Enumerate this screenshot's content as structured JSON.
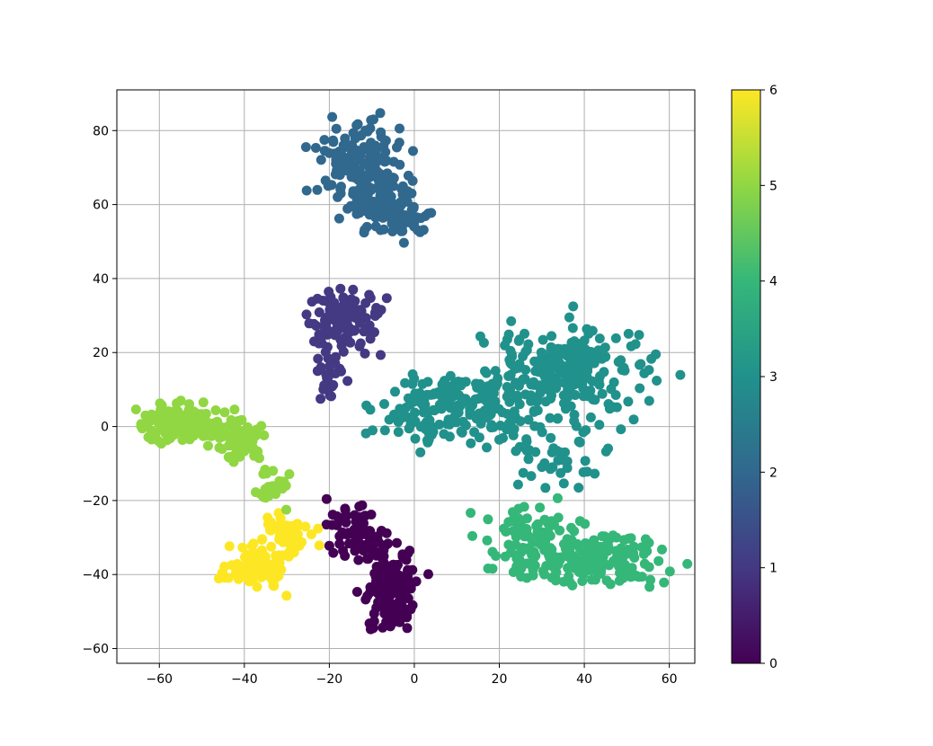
{
  "chart_data": {
    "type": "scatter",
    "title": "",
    "xlabel": "",
    "ylabel": "",
    "xlim": [
      -70,
      66
    ],
    "ylim": [
      -64,
      91
    ],
    "grid": true,
    "x_ticks": [
      -60,
      -40,
      -20,
      0,
      20,
      40,
      60
    ],
    "y_ticks": [
      -60,
      -40,
      -20,
      0,
      20,
      40,
      60,
      80
    ],
    "x_tick_labels": [
      "−60",
      "−40",
      "−20",
      "0",
      "20",
      "40",
      "60"
    ],
    "y_tick_labels": [
      "−60",
      "−40",
      "−20",
      "0",
      "20",
      "40",
      "60",
      "80"
    ],
    "colorbar": {
      "colormap": "viridis",
      "range": [
        0,
        6
      ],
      "ticks": [
        0,
        1,
        2,
        3,
        4,
        5,
        6
      ],
      "tick_labels": [
        "0",
        "1",
        "2",
        "3",
        "4",
        "5",
        "6"
      ],
      "colors": [
        "#440154",
        "#443983",
        "#31688e",
        "#21918c",
        "#35b779",
        "#90d743",
        "#fde725"
      ]
    },
    "clusters": [
      {
        "label": 2,
        "center": [
          -12,
          70
        ],
        "spread": [
          6,
          7
        ],
        "count": 160
      },
      {
        "label": 2,
        "center": [
          -5,
          58
        ],
        "spread": [
          5,
          4
        ],
        "count": 90
      },
      {
        "label": 1,
        "center": [
          -17,
          28
        ],
        "spread": [
          5,
          5
        ],
        "count": 110
      },
      {
        "label": 1,
        "center": [
          -20,
          14
        ],
        "spread": [
          2,
          4
        ],
        "count": 25
      },
      {
        "label": 3,
        "center": [
          10,
          5
        ],
        "spread": [
          10,
          6
        ],
        "count": 180
      },
      {
        "label": 3,
        "center": [
          36,
          15
        ],
        "spread": [
          12,
          7
        ],
        "count": 230
      },
      {
        "label": 3,
        "center": [
          35,
          -6
        ],
        "spread": [
          6,
          6
        ],
        "count": 50
      },
      {
        "label": 4,
        "center": [
          28,
          -32
        ],
        "spread": [
          7,
          6
        ],
        "count": 120
      },
      {
        "label": 4,
        "center": [
          45,
          -36
        ],
        "spread": [
          8,
          4
        ],
        "count": 130
      },
      {
        "label": 0,
        "center": [
          -14,
          -28
        ],
        "spread": [
          4,
          5
        ],
        "count": 60
      },
      {
        "label": 0,
        "center": [
          -6,
          -40
        ],
        "spread": [
          4,
          6
        ],
        "count": 110
      },
      {
        "label": 0,
        "center": [
          -6,
          -50
        ],
        "spread": [
          3,
          3
        ],
        "count": 40
      },
      {
        "label": 5,
        "center": [
          -55,
          1
        ],
        "spread": [
          6,
          3
        ],
        "count": 120
      },
      {
        "label": 5,
        "center": [
          -42,
          -3
        ],
        "spread": [
          4,
          4
        ],
        "count": 60
      },
      {
        "label": 5,
        "center": [
          -33,
          -17
        ],
        "spread": [
          3,
          4
        ],
        "count": 25
      },
      {
        "label": 6,
        "center": [
          -38,
          -38
        ],
        "spread": [
          4,
          3
        ],
        "count": 90
      },
      {
        "label": 6,
        "center": [
          -30,
          -29
        ],
        "spread": [
          3,
          3
        ],
        "count": 45
      }
    ]
  }
}
